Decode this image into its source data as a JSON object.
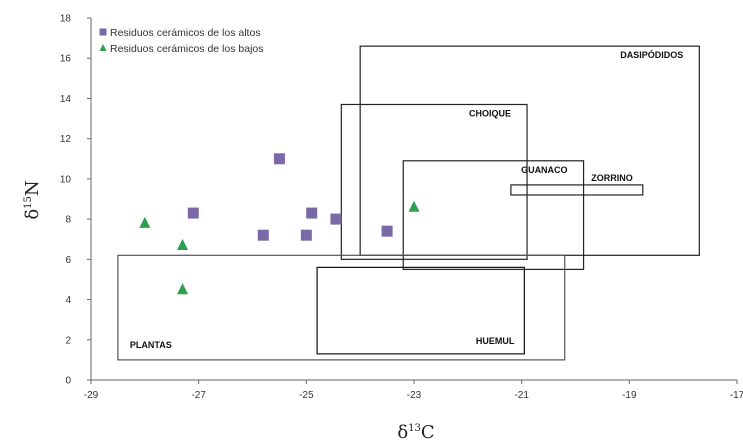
{
  "chart_data": {
    "type": "scatter",
    "xlabel_prefix": "δ",
    "xlabel_sup": "13",
    "xlabel_suffix": "C",
    "ylabel_prefix": "δ",
    "ylabel_sup": "15",
    "ylabel_suffix": "N",
    "xlim": [
      -29,
      -17
    ],
    "ylim": [
      0,
      18
    ],
    "x_ticks": [
      -29,
      -27,
      -25,
      -23,
      -21,
      -19,
      -17
    ],
    "y_ticks": [
      0,
      2,
      4,
      6,
      8,
      10,
      12,
      14,
      16,
      18
    ],
    "grid": false,
    "legend_position": "top-left",
    "series": [
      {
        "name": "Residuos cerámicos de los altos",
        "marker": "square",
        "color": "#7b68a6",
        "points": [
          {
            "x": -27.1,
            "y": 8.3
          },
          {
            "x": -25.5,
            "y": 11.0
          },
          {
            "x": -25.8,
            "y": 7.2
          },
          {
            "x": -24.9,
            "y": 8.3
          },
          {
            "x": -25.0,
            "y": 7.2
          },
          {
            "x": -24.45,
            "y": 8.0
          },
          {
            "x": -23.5,
            "y": 7.4
          }
        ]
      },
      {
        "name": "Residuos cerámicos de los bajos",
        "marker": "triangle",
        "color": "#2e9e4f",
        "points": [
          {
            "x": -28.0,
            "y": 7.8
          },
          {
            "x": -27.3,
            "y": 6.7
          },
          {
            "x": -27.3,
            "y": 4.5
          },
          {
            "x": -23.0,
            "y": 8.6
          }
        ]
      }
    ],
    "regions": [
      {
        "label": "DASIPÓDIDOS",
        "x0": -24.0,
        "x1": -17.7,
        "y0": 6.2,
        "y1": 16.6,
        "color": "#222222"
      },
      {
        "label": "CHOIQUE",
        "x0": -24.35,
        "x1": -20.9,
        "y0": 6.0,
        "y1": 13.7,
        "color": "#222222"
      },
      {
        "label": "GUANACO",
        "x0": -23.2,
        "x1": -19.85,
        "y0": 5.5,
        "y1": 10.9,
        "color": "#222222"
      },
      {
        "label": "ZORRINO",
        "x0": -21.2,
        "x1": -18.75,
        "y0": 9.2,
        "y1": 9.7,
        "color": "#222222"
      },
      {
        "label": "PLANTAS",
        "x0": -28.5,
        "x1": -20.2,
        "y0": 1.0,
        "y1": 6.2,
        "color": "#555555"
      },
      {
        "label": "HUEMUL",
        "x0": -24.8,
        "x1": -20.95,
        "y0": 1.3,
        "y1": 5.6,
        "color": "#111111"
      }
    ]
  }
}
